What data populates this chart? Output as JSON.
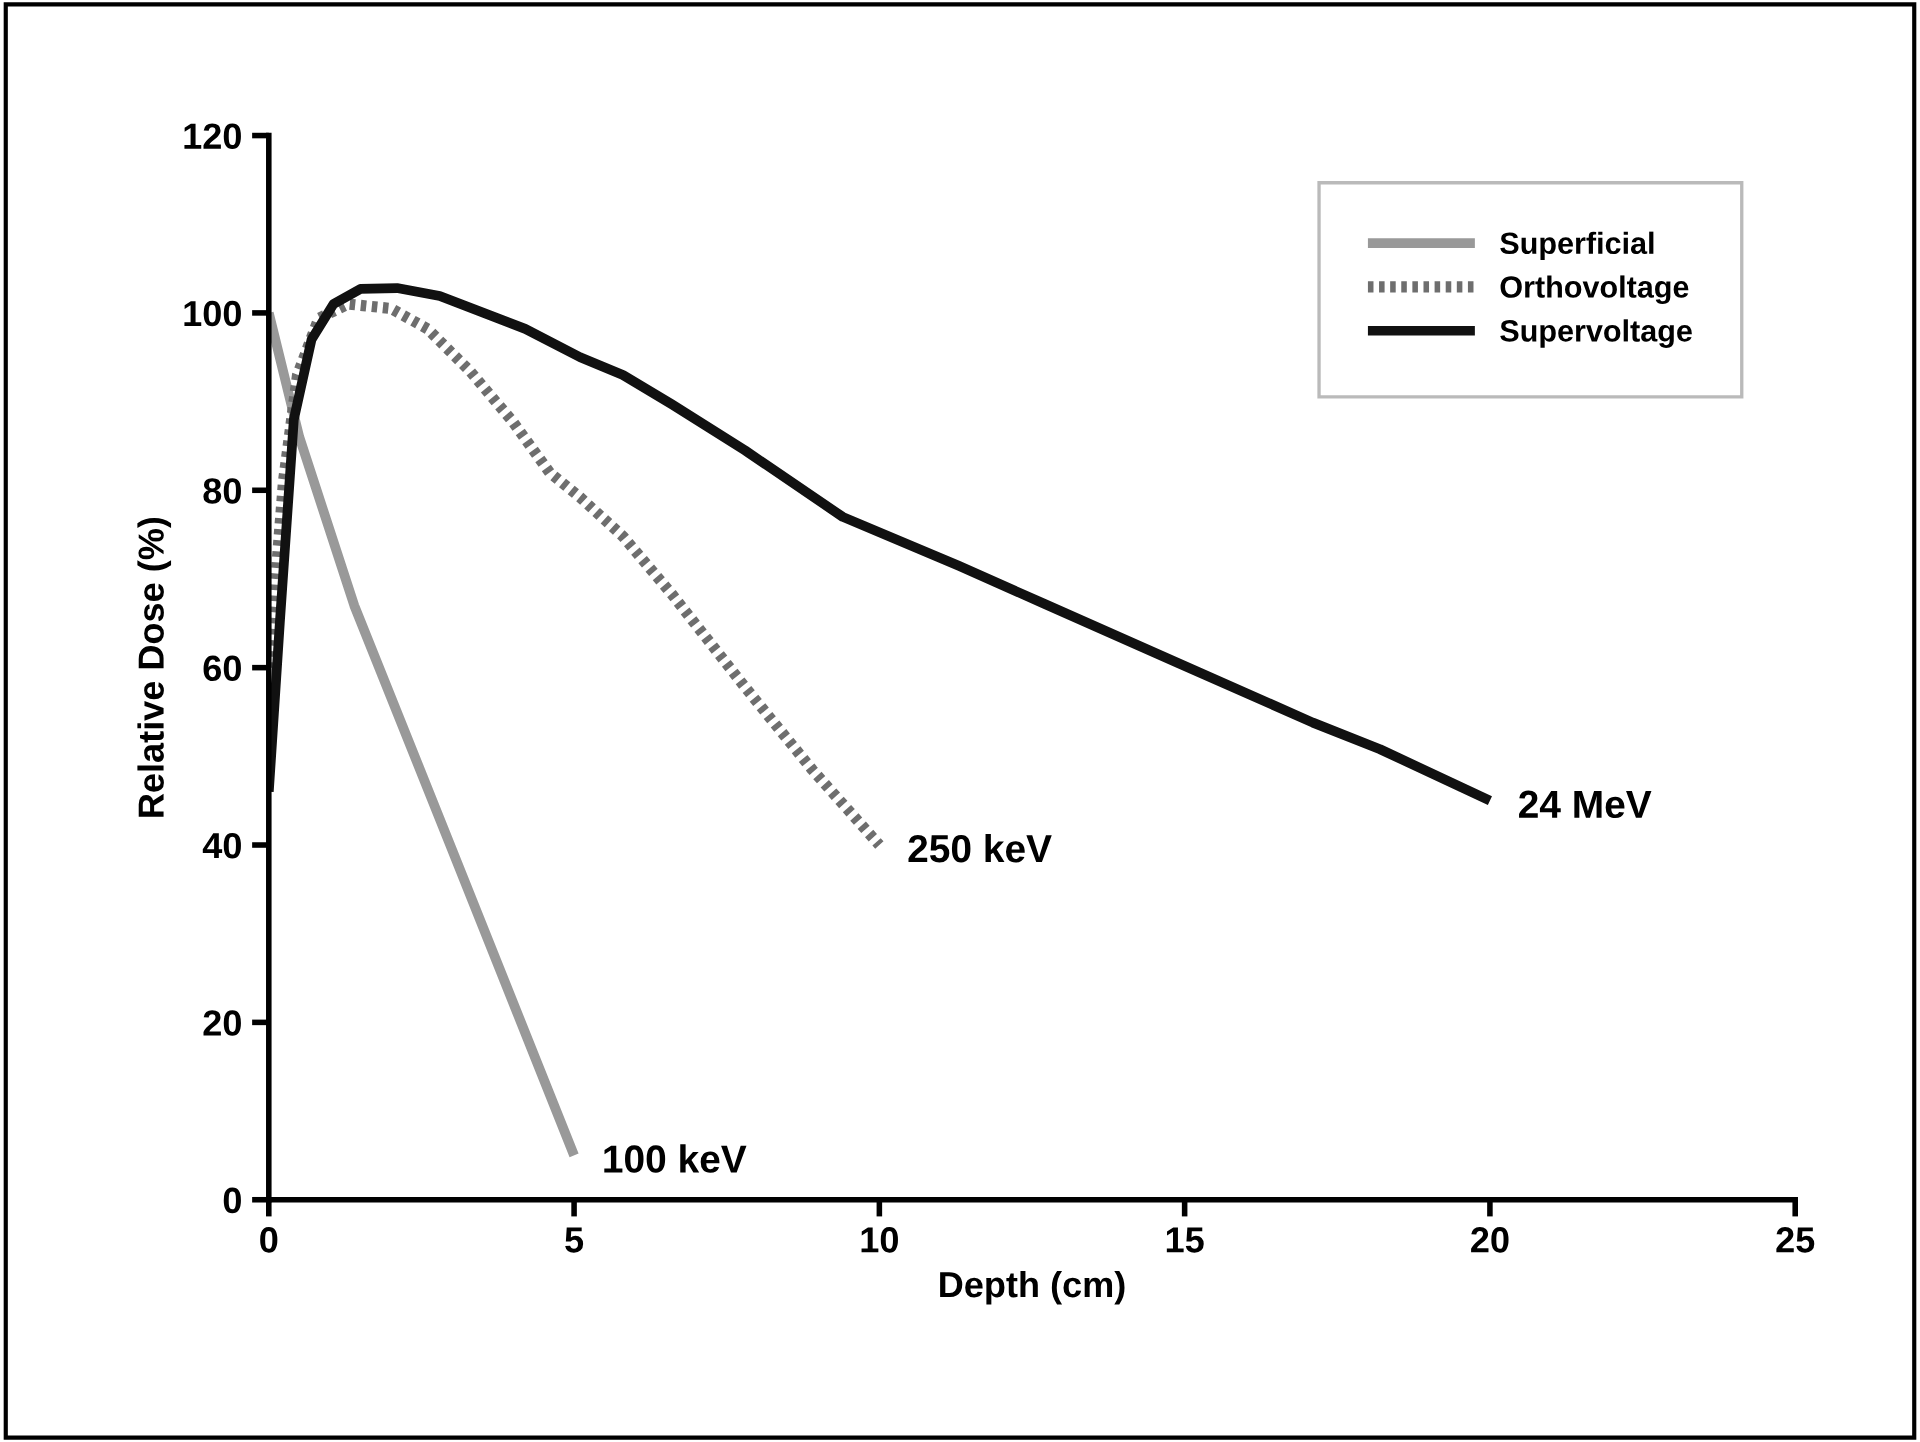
{
  "chart_data": {
    "type": "line",
    "xlabel": "Depth (cm)",
    "ylabel": "Relative Dose (%)",
    "xlim": [
      0,
      25
    ],
    "ylim": [
      0,
      120
    ],
    "xticks": [
      0,
      5,
      10,
      15,
      20,
      25
    ],
    "yticks": [
      0,
      20,
      40,
      60,
      80,
      100,
      120
    ],
    "grid": false,
    "legend": "top right",
    "marker": "none",
    "series": [
      {
        "name": "Superficial",
        "color": "#999999",
        "line_style": "solid",
        "x": [
          0,
          0.5,
          1.4,
          3,
          5
        ],
        "values": [
          100,
          86,
          67,
          39.5,
          5
        ]
      },
      {
        "name": "Orthovoltage",
        "color": "#6e6e6e",
        "line_style": "dotted",
        "x": [
          0,
          0.24,
          0.47,
          0.82,
          1.3,
          2,
          2.6,
          3.3,
          4,
          4.6,
          5.1,
          5.8,
          6.6,
          7.8,
          8.9,
          10
        ],
        "values": [
          60,
          81,
          93,
          99.4,
          101,
          100.5,
          98.2,
          93.4,
          87.7,
          82,
          79.2,
          74.8,
          68.3,
          57.8,
          48.5,
          40
        ]
      },
      {
        "name": "Supervoltage",
        "color": "#111111",
        "line_style": "solid",
        "x": [
          0,
          0.18,
          0.41,
          0.7,
          1.06,
          1.5,
          2.1,
          2.8,
          4.2,
          5.1,
          5.8,
          6.6,
          7.8,
          9.4,
          11.3,
          12.7,
          14.9,
          17.1,
          18.2,
          20
        ],
        "values": [
          46,
          65,
          88,
          97,
          101,
          102.7,
          102.8,
          101.9,
          98.2,
          95,
          93,
          89.7,
          84.5,
          77,
          71.5,
          67.2,
          60.5,
          53.8,
          50.8,
          45
        ]
      }
    ],
    "annotations": [
      {
        "text": "100 keV",
        "x": 5,
        "y": 5
      },
      {
        "text": "250 keV",
        "x": 10,
        "y": 40
      },
      {
        "text": "24 MeV",
        "x": 20,
        "y": 45
      }
    ]
  }
}
